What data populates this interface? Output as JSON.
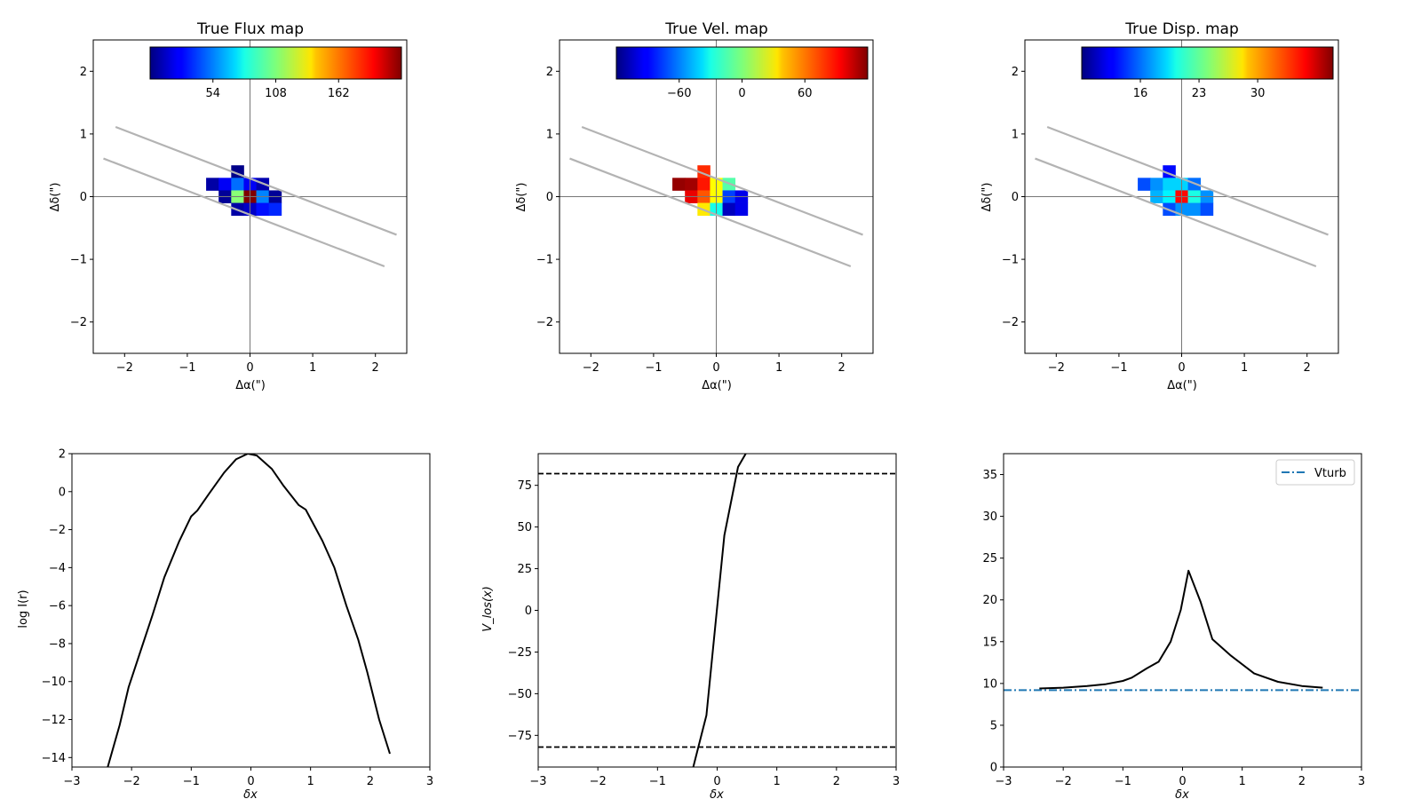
{
  "chart_data": [
    {
      "type": "heatmap",
      "title": "True Flux map",
      "xlabel": "Δα(\")",
      "ylabel": "Δδ(\")",
      "xlim": [
        -2.5,
        2.5
      ],
      "ylim": [
        -2.5,
        2.5
      ],
      "xticks": [
        -2,
        -1,
        0,
        1,
        2
      ],
      "yticks": [
        -2,
        -1,
        0,
        1,
        2
      ],
      "pixel_size": 0.2,
      "colormap": "jet",
      "colorbar": {
        "vmin": 0,
        "vmax": 216,
        "ticks": [
          54,
          108,
          162
        ],
        "location": "top-inset"
      },
      "slit": {
        "pa_deg": -21,
        "half_width": 0.27,
        "length": 4.8
      },
      "cells": [
        {
          "x": -0.2,
          "y": 0.4,
          "v": 2
        },
        {
          "x": -0.6,
          "y": 0.2,
          "v": 8
        },
        {
          "x": -0.4,
          "y": 0.2,
          "v": 25
        },
        {
          "x": -0.2,
          "y": 0.2,
          "v": 50
        },
        {
          "x": 0.0,
          "y": 0.2,
          "v": 25
        },
        {
          "x": 0.2,
          "y": 0.2,
          "v": 10
        },
        {
          "x": -0.4,
          "y": 0.0,
          "v": 5
        },
        {
          "x": -0.2,
          "y": 0.0,
          "v": 110
        },
        {
          "x": 0.0,
          "y": 0.0,
          "v": 216
        },
        {
          "x": 0.2,
          "y": 0.0,
          "v": 55
        },
        {
          "x": 0.4,
          "y": 0.0,
          "v": 5
        },
        {
          "x": -0.2,
          "y": -0.2,
          "v": 8
        },
        {
          "x": 0.0,
          "y": -0.2,
          "v": 15
        },
        {
          "x": 0.2,
          "y": -0.2,
          "v": 30
        },
        {
          "x": 0.4,
          "y": -0.2,
          "v": 35
        }
      ]
    },
    {
      "type": "heatmap",
      "title": "True Vel. map",
      "xlabel": "Δα(\")",
      "ylabel": "Δδ(\")",
      "xlim": [
        -2.5,
        2.5
      ],
      "ylim": [
        -2.5,
        2.5
      ],
      "xticks": [
        -2,
        -1,
        0,
        1,
        2
      ],
      "yticks": [
        -2,
        -1,
        0,
        1,
        2
      ],
      "pixel_size": 0.2,
      "colormap": "jet",
      "colorbar": {
        "vmin": -120,
        "vmax": 120,
        "ticks": [
          -60,
          0,
          60
        ],
        "location": "top-inset"
      },
      "slit": {
        "pa_deg": -21,
        "half_width": 0.27,
        "length": 4.8
      },
      "cells": [
        {
          "x": -0.2,
          "y": 0.4,
          "v": 80
        },
        {
          "x": -0.6,
          "y": 0.2,
          "v": 115
        },
        {
          "x": -0.4,
          "y": 0.2,
          "v": 112
        },
        {
          "x": -0.2,
          "y": 0.2,
          "v": 85
        },
        {
          "x": 0.0,
          "y": 0.2,
          "v": 30
        },
        {
          "x": 0.2,
          "y": 0.2,
          "v": -10
        },
        {
          "x": -0.4,
          "y": 0.0,
          "v": 95
        },
        {
          "x": -0.2,
          "y": 0.0,
          "v": 70
        },
        {
          "x": 0.0,
          "y": 0.0,
          "v": 30
        },
        {
          "x": 0.2,
          "y": 0.0,
          "v": -75
        },
        {
          "x": 0.4,
          "y": 0.0,
          "v": -95
        },
        {
          "x": -0.2,
          "y": -0.2,
          "v": 35
        },
        {
          "x": 0.0,
          "y": -0.2,
          "v": -25
        },
        {
          "x": 0.2,
          "y": -0.2,
          "v": -105
        },
        {
          "x": 0.4,
          "y": -0.2,
          "v": -95
        }
      ]
    },
    {
      "type": "heatmap",
      "title": "True Disp. map",
      "xlabel": "Δα(\")",
      "ylabel": "Δδ(\")",
      "xlim": [
        -2.5,
        2.5
      ],
      "ylim": [
        -2.5,
        2.5
      ],
      "xticks": [
        -2,
        -1,
        0,
        1,
        2
      ],
      "yticks": [
        -2,
        -1,
        0,
        1,
        2
      ],
      "pixel_size": 0.2,
      "colormap": "jet",
      "colorbar": {
        "vmin": 9,
        "vmax": 39,
        "ticks": [
          16,
          23,
          30
        ],
        "location": "top-inset"
      },
      "slit": {
        "pa_deg": -21,
        "half_width": 0.27,
        "length": 4.8
      },
      "cells": [
        {
          "x": -0.2,
          "y": 0.4,
          "v": 13
        },
        {
          "x": -0.6,
          "y": 0.2,
          "v": 15
        },
        {
          "x": -0.4,
          "y": 0.2,
          "v": 17
        },
        {
          "x": -0.2,
          "y": 0.2,
          "v": 19
        },
        {
          "x": 0.0,
          "y": 0.2,
          "v": 19
        },
        {
          "x": 0.2,
          "y": 0.2,
          "v": 16
        },
        {
          "x": -0.4,
          "y": 0.0,
          "v": 18
        },
        {
          "x": -0.2,
          "y": 0.0,
          "v": 20
        },
        {
          "x": 0.0,
          "y": 0.0,
          "v": 35
        },
        {
          "x": 0.2,
          "y": 0.0,
          "v": 21
        },
        {
          "x": 0.4,
          "y": 0.0,
          "v": 17
        },
        {
          "x": -0.2,
          "y": -0.2,
          "v": 15
        },
        {
          "x": 0.0,
          "y": -0.2,
          "v": 17
        },
        {
          "x": 0.2,
          "y": -0.2,
          "v": 17
        },
        {
          "x": 0.4,
          "y": -0.2,
          "v": 15
        }
      ]
    },
    {
      "type": "line",
      "title": "",
      "xlabel": "δx",
      "ylabel": "log I(r)",
      "xlim": [
        -3,
        3
      ],
      "ylim": [
        -14.5,
        2
      ],
      "xticks": [
        -3,
        -2,
        -1,
        0,
        1,
        2,
        3
      ],
      "yticks": [
        -14,
        -12,
        -10,
        -8,
        -6,
        -4,
        -2,
        0,
        2
      ],
      "series": [
        {
          "color": "#000000",
          "x": [
            -2.4,
            -2.2,
            -2.05,
            -1.85,
            -1.65,
            -1.45,
            -1.2,
            -1.0,
            -0.9,
            -0.7,
            -0.45,
            -0.25,
            -0.05,
            0.1,
            0.35,
            0.55,
            0.8,
            0.92,
            1.2,
            1.4,
            1.6,
            1.8,
            1.95,
            2.15,
            2.33
          ],
          "y": [
            -14.5,
            -12.3,
            -10.3,
            -8.4,
            -6.5,
            -4.5,
            -2.6,
            -1.3,
            -1.0,
            -0.1,
            1.0,
            1.7,
            2.0,
            1.9,
            1.2,
            0.3,
            -0.7,
            -0.95,
            -2.6,
            -4.0,
            -6.0,
            -7.8,
            -9.5,
            -12.0,
            -13.8
          ]
        }
      ]
    },
    {
      "type": "line",
      "title": "",
      "xlabel": "δx",
      "ylabel": "V_los(x)",
      "xlim": [
        -3,
        3
      ],
      "ylim": [
        -94,
        94
      ],
      "xticks": [
        -3,
        -2,
        -1,
        0,
        1,
        2,
        3
      ],
      "yticks": [
        -75,
        -50,
        -25,
        0,
        25,
        50,
        75
      ],
      "hlines": [
        82,
        -82
      ],
      "series": [
        {
          "color": "#000000",
          "x": [
            -0.4,
            -0.18,
            -0.02,
            0.12,
            0.35,
            0.48
          ],
          "y": [
            -94,
            -63,
            -5,
            45,
            86,
            94
          ]
        }
      ]
    },
    {
      "type": "line",
      "title": "",
      "xlabel": "δx",
      "ylabel": "",
      "xlim": [
        -3,
        3
      ],
      "ylim": [
        0,
        37.5
      ],
      "xticks": [
        -3,
        -2,
        -1,
        0,
        1,
        2,
        3
      ],
      "yticks": [
        0,
        5,
        10,
        15,
        20,
        25,
        30,
        35
      ],
      "legend": {
        "position": "top-right",
        "entries": [
          "Vturb"
        ]
      },
      "series": [
        {
          "color": "#000000",
          "x": [
            -2.4,
            -2.0,
            -1.6,
            -1.3,
            -1.0,
            -0.85,
            -0.6,
            -0.4,
            -0.2,
            -0.03,
            0.1,
            0.3,
            0.5,
            0.8,
            1.2,
            1.6,
            2.0,
            2.35
          ],
          "y": [
            9.4,
            9.5,
            9.7,
            9.9,
            10.3,
            10.7,
            11.8,
            12.6,
            15.0,
            18.8,
            23.5,
            19.8,
            15.3,
            13.4,
            11.2,
            10.2,
            9.7,
            9.5
          ]
        },
        {
          "name": "Vturb",
          "color": "#1f77b4",
          "style": "dashdot",
          "x": [
            -3,
            3
          ],
          "y": [
            9.2,
            9.2
          ]
        }
      ]
    }
  ]
}
